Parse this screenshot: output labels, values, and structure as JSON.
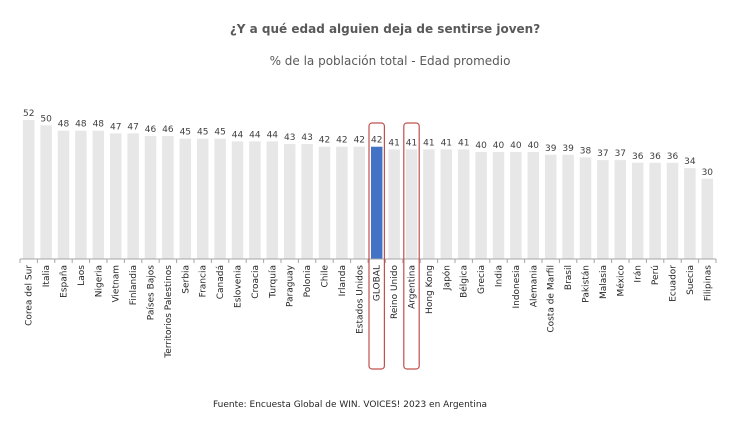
{
  "chart_data": {
    "type": "bar",
    "title": "¿Y a qué edad alguien deja de sentirse joven?",
    "subtitle": "% de la población total - Edad promedio",
    "source": "Fuente: Encuesta Global de WIN. VOICES! 2023 en Argentina",
    "categories": [
      "Corea del Sur",
      "Italia",
      "España",
      "Laos",
      "Nigeria",
      "Vietnam",
      "Finlandia",
      "Países Bajos",
      "Territorios Palestinos",
      "Serbia",
      "Francia",
      "Canadá",
      "Eslovenia",
      "Croacia",
      "Turquía",
      "Paraguay",
      "Polonia",
      "Chile",
      "Irlanda",
      "Estados Unidos",
      "GLOBAL",
      "Reino Unido",
      "Argentina",
      "Hong Kong",
      "Japón",
      "Bélgica",
      "Grecia",
      "India",
      "Indonesia",
      "Alemania",
      "Costa de Marfil",
      "Brasil",
      "Pakistán",
      "Malasia",
      "México",
      "Irán",
      "Perú",
      "Ecuador",
      "Suecia",
      "Filipinas"
    ],
    "values": [
      52,
      50,
      48,
      48,
      48,
      47,
      47,
      46,
      46,
      45,
      45,
      45,
      44,
      44,
      44,
      43,
      43,
      42,
      42,
      42,
      42,
      41,
      41,
      41,
      41,
      41,
      40,
      40,
      40,
      40,
      39,
      39,
      38,
      37,
      37,
      36,
      36,
      36,
      34,
      30
    ],
    "ylim": [
      0,
      52
    ],
    "highlighted": [
      "GLOBAL",
      "Argentina"
    ],
    "bar_color": "#e7e7e7",
    "highlight_color": "#4472c4",
    "outline_color": "#c0504d"
  }
}
